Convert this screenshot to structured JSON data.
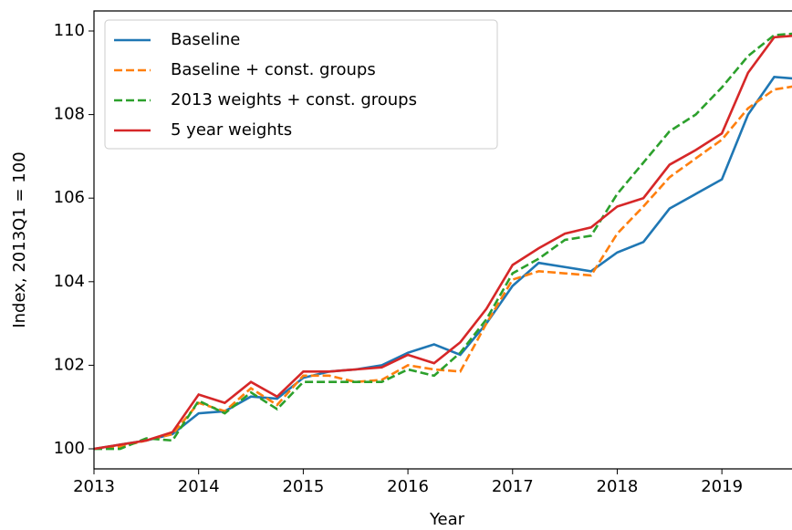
{
  "chart_data": {
    "type": "line",
    "xlabel": "Year",
    "ylabel": "Index, 2013Q1 = 100",
    "x": [
      2013,
      2013.25,
      2013.5,
      2013.75,
      2014,
      2014.25,
      2014.5,
      2014.75,
      2015,
      2015.25,
      2015.5,
      2015.75,
      2016,
      2016.25,
      2016.5,
      2016.75,
      2017,
      2017.25,
      2017.5,
      2017.75,
      2018,
      2018.25,
      2018.5,
      2018.75,
      2019,
      2019.25,
      2019.5,
      2019.75
    ],
    "series": [
      {
        "name": "Baseline",
        "color": "#1f77b4",
        "dashed": false,
        "values": [
          100.0,
          100.1,
          100.2,
          100.35,
          100.85,
          100.9,
          101.25,
          101.2,
          101.7,
          101.85,
          101.9,
          102.0,
          102.3,
          102.5,
          102.25,
          103.0,
          103.9,
          104.45,
          104.35,
          104.25,
          104.7,
          104.95,
          105.75,
          106.1,
          106.45,
          108.0,
          108.9,
          108.85
        ]
      },
      {
        "name": "Baseline + const. groups",
        "color": "#ff7f0e",
        "dashed": true,
        "values": [
          100.0,
          100.05,
          100.2,
          100.35,
          101.1,
          100.9,
          101.45,
          101.05,
          101.75,
          101.75,
          101.6,
          101.65,
          102.0,
          101.9,
          101.85,
          103.0,
          104.05,
          104.25,
          104.2,
          104.15,
          105.15,
          105.8,
          106.5,
          106.95,
          107.4,
          108.15,
          108.6,
          108.7
        ]
      },
      {
        "name": "2013 weights + const. groups",
        "color": "#2ca02c",
        "dashed": true,
        "values": [
          100.0,
          100.0,
          100.25,
          100.2,
          101.15,
          100.85,
          101.35,
          100.95,
          101.6,
          101.6,
          101.6,
          101.6,
          101.9,
          101.75,
          102.3,
          103.1,
          104.2,
          104.55,
          105.0,
          105.1,
          106.1,
          106.85,
          107.6,
          108.0,
          108.65,
          109.4,
          109.9,
          109.95
        ]
      },
      {
        "name": "5 year weights",
        "color": "#d62728",
        "dashed": false,
        "values": [
          100.0,
          100.1,
          100.2,
          100.4,
          101.3,
          101.1,
          101.6,
          101.25,
          101.85,
          101.85,
          101.9,
          101.95,
          102.25,
          102.05,
          102.55,
          103.35,
          104.4,
          104.8,
          105.15,
          105.3,
          105.8,
          106.0,
          106.8,
          107.15,
          107.55,
          109.0,
          109.85,
          109.9
        ]
      }
    ],
    "xlim": [
      2013,
      2019.67
    ],
    "xticks": [
      2013,
      2014,
      2015,
      2016,
      2017,
      2018,
      2019
    ],
    "ylim": [
      99.52,
      110.48
    ],
    "yticks": [
      100,
      102,
      104,
      106,
      108,
      110
    ],
    "legend": "upper left"
  }
}
